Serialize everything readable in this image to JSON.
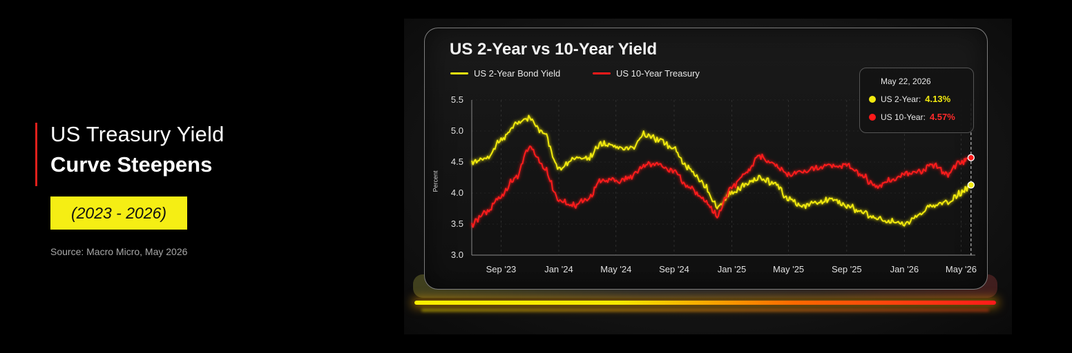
{
  "left_panel": {
    "title_line1": "US Treasury Yield",
    "title_line2": "Curve Steepens",
    "years": "(2023 - 2026)",
    "source": "Source: Macro Micro, May 2026",
    "accent_color": "#e0201b",
    "highlight_color": "#f5ee14"
  },
  "chart_data": {
    "type": "line",
    "title": "US 2-Year vs 10-Year Yield",
    "ylabel": "Percent",
    "ylim": [
      3.0,
      5.5
    ],
    "yticks": [
      "3.0",
      "3.5",
      "4.0",
      "4.5",
      "5.0",
      "5.5"
    ],
    "xlim": [
      "2023-07",
      "2026-05-31"
    ],
    "xticks": [
      {
        "date": "2023-09",
        "label": "Sep '23"
      },
      {
        "date": "2024-01",
        "label": "Jan '24"
      },
      {
        "date": "2024-05",
        "label": "May '24"
      },
      {
        "date": "2024-09",
        "label": "Sep '24"
      },
      {
        "date": "2025-01",
        "label": "Jan '25"
      },
      {
        "date": "2025-05",
        "label": "May '25"
      },
      {
        "date": "2025-09",
        "label": "Sep '25"
      },
      {
        "date": "2026-01",
        "label": "Jan '26"
      },
      {
        "date": "2026-05",
        "label": "May '26"
      }
    ],
    "grid": "vertical dashed",
    "series": [
      {
        "name": "US  2-Year Bond Yield",
        "color": "#f2ea10",
        "points": [
          [
            "2023-07",
            4.5
          ],
          [
            "2023-08",
            4.55
          ],
          [
            "2023-09",
            4.85
          ],
          [
            "2023-10",
            5.1
          ],
          [
            "2023-11",
            5.2
          ],
          [
            "2023-12",
            4.95
          ],
          [
            "2024-01",
            4.4
          ],
          [
            "2024-02",
            4.55
          ],
          [
            "2024-03",
            4.55
          ],
          [
            "2024-04",
            4.8
          ],
          [
            "2024-05",
            4.75
          ],
          [
            "2024-06",
            4.7
          ],
          [
            "2024-07",
            4.95
          ],
          [
            "2024-08",
            4.85
          ],
          [
            "2024-09",
            4.7
          ],
          [
            "2024-10",
            4.4
          ],
          [
            "2024-11",
            4.15
          ],
          [
            "2024-12",
            3.8
          ],
          [
            "2025-01",
            4.0
          ],
          [
            "2025-02",
            4.15
          ],
          [
            "2025-03",
            4.25
          ],
          [
            "2025-04",
            4.15
          ],
          [
            "2025-05",
            3.9
          ],
          [
            "2025-06",
            3.8
          ],
          [
            "2025-07",
            3.85
          ],
          [
            "2025-08",
            3.9
          ],
          [
            "2025-09",
            3.8
          ],
          [
            "2025-10",
            3.7
          ],
          [
            "2025-11",
            3.6
          ],
          [
            "2025-12",
            3.55
          ],
          [
            "2026-01",
            3.5
          ],
          [
            "2026-02",
            3.65
          ],
          [
            "2026-03",
            3.8
          ],
          [
            "2026-04",
            3.85
          ],
          [
            "2026-05",
            4.0
          ],
          [
            "2026-05-22",
            4.13
          ]
        ]
      },
      {
        "name": "US  10-Year Treasury",
        "color": "#ff1a1a",
        "points": [
          [
            "2023-07",
            3.5
          ],
          [
            "2023-08",
            3.7
          ],
          [
            "2023-09",
            3.95
          ],
          [
            "2023-10",
            4.25
          ],
          [
            "2023-11",
            4.75
          ],
          [
            "2023-12",
            4.4
          ],
          [
            "2024-01",
            3.9
          ],
          [
            "2024-02",
            3.8
          ],
          [
            "2024-03",
            3.9
          ],
          [
            "2024-04",
            4.2
          ],
          [
            "2024-05",
            4.2
          ],
          [
            "2024-06",
            4.25
          ],
          [
            "2024-07",
            4.45
          ],
          [
            "2024-08",
            4.45
          ],
          [
            "2024-09",
            4.35
          ],
          [
            "2024-10",
            4.1
          ],
          [
            "2024-11",
            3.9
          ],
          [
            "2024-12",
            3.65
          ],
          [
            "2025-01",
            4.1
          ],
          [
            "2025-02",
            4.35
          ],
          [
            "2025-03",
            4.6
          ],
          [
            "2025-04",
            4.45
          ],
          [
            "2025-05",
            4.3
          ],
          [
            "2025-06",
            4.35
          ],
          [
            "2025-07",
            4.4
          ],
          [
            "2025-08",
            4.45
          ],
          [
            "2025-09",
            4.45
          ],
          [
            "2025-10",
            4.3
          ],
          [
            "2025-11",
            4.1
          ],
          [
            "2025-12",
            4.2
          ],
          [
            "2026-01",
            4.3
          ],
          [
            "2026-02",
            4.35
          ],
          [
            "2026-03",
            4.45
          ],
          [
            "2026-04",
            4.3
          ],
          [
            "2026-05",
            4.5
          ],
          [
            "2026-05-22",
            4.57
          ]
        ]
      }
    ],
    "tooltip": {
      "date": "May 22, 2026",
      "rows": [
        {
          "label": "US  2-Year:",
          "value": "4.13%",
          "color": "#f2ea10"
        },
        {
          "label": "US  10-Year:",
          "value": "4.57%",
          "color": "#ff1a1a"
        }
      ]
    }
  }
}
